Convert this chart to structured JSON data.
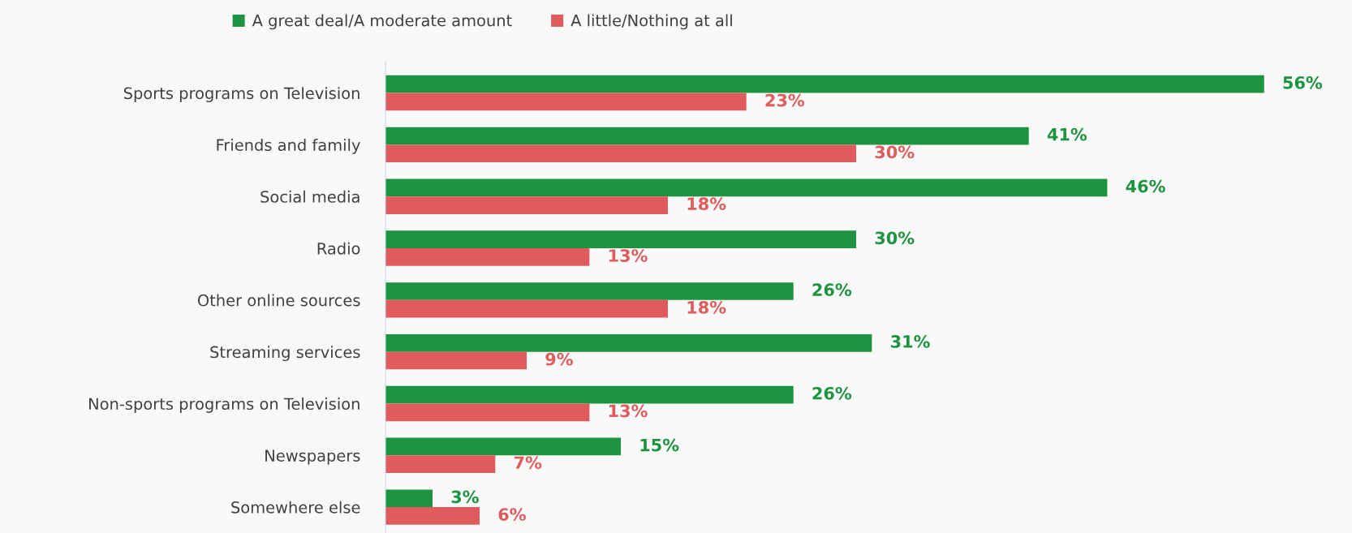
{
  "chart_data": {
    "type": "bar",
    "orientation": "horizontal",
    "categories": [
      "Sports programs on Television",
      "Friends and family",
      "Social media",
      "Radio",
      "Other online sources",
      "Streaming services",
      "Non-sports programs on Television",
      "Newspapers",
      "Somewhere else"
    ],
    "series": [
      {
        "name": "A great deal/A moderate amount",
        "color": "#1e9441",
        "values": [
          56,
          41,
          46,
          30,
          26,
          31,
          26,
          15,
          3
        ],
        "value_labels": [
          "56%",
          "41%",
          "46%",
          "30%",
          "26%",
          "31%",
          "26%",
          "15%",
          "3%"
        ]
      },
      {
        "name": "A little/Nothing at all",
        "color": "#e05c5c",
        "values": [
          23,
          30,
          18,
          13,
          18,
          9,
          13,
          7,
          6
        ],
        "value_labels": [
          "23%",
          "30%",
          "18%",
          "13%",
          "18%",
          "9%",
          "13%",
          "7%",
          "6%"
        ]
      }
    ],
    "legend": "top",
    "grid": false,
    "tick_labels": "y"
  }
}
